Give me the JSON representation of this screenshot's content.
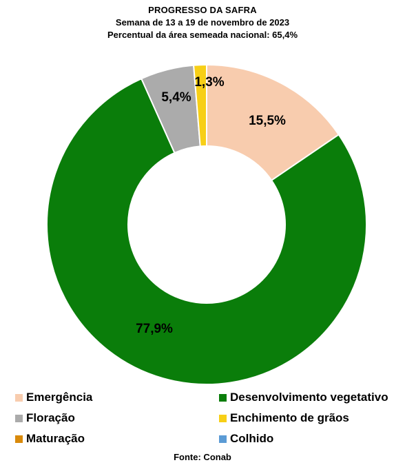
{
  "chart_data": {
    "type": "pie",
    "title": "PROGRESSO DA SAFRA",
    "subtitle": "Semana de 13 a 19 de novembro de 2023",
    "subtitle2": "Percentual da área semeada nacional: 65,4%",
    "start_category": "Emergência",
    "direction": "clockwise",
    "slices": [
      {
        "name": "Emergência",
        "value": 15.5,
        "label": "15,5%",
        "color": "#f8ccae"
      },
      {
        "name": "Desenvolvimento vegetativo",
        "value": 77.9,
        "label": "77,9%",
        "color": "#0a7d0a"
      },
      {
        "name": "Floração",
        "value": 5.4,
        "label": "5,4%",
        "color": "#ababab"
      },
      {
        "name": "Enchimento de grãos",
        "value": 1.3,
        "label": "1,3%",
        "color": "#f7cf17"
      }
    ],
    "legend": [
      {
        "name": "Emergência",
        "color": "#f8ccae"
      },
      {
        "name": "Desenvolvimento vegetativo",
        "color": "#0a7d0a"
      },
      {
        "name": "Floração",
        "color": "#ababab"
      },
      {
        "name": "Enchimento de grãos",
        "color": "#f7cf17"
      },
      {
        "name": "Maturação",
        "color": "#d98a0b"
      },
      {
        "name": "Colhido",
        "color": "#5b9bd5"
      }
    ],
    "legend_position": "bottom",
    "source": "Fonte: Conab"
  }
}
